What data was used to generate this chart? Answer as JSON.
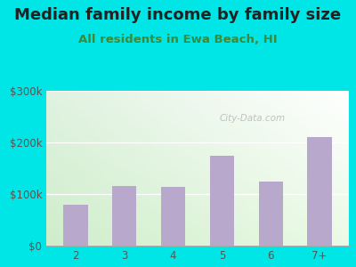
{
  "title": "Median family income by family size",
  "subtitle": "All residents in Ewa Beach, HI",
  "categories": [
    "2",
    "3",
    "4",
    "5",
    "6",
    "7+"
  ],
  "values": [
    80000,
    115000,
    113000,
    175000,
    125000,
    210000
  ],
  "bar_color": "#b8a8cc",
  "title_color": "#222222",
  "subtitle_color": "#3a8a3a",
  "background_outer": "#00e5e5",
  "background_inner_top_left": "#e8f8f0",
  "background_inner_bottom_right": "#ffffff",
  "ylim": [
    0,
    300000
  ],
  "yticks": [
    0,
    100000,
    200000,
    300000
  ],
  "ytick_labels": [
    "$0",
    "$100k",
    "$200k",
    "$300k"
  ],
  "watermark": "City-Data.com",
  "title_fontsize": 13,
  "subtitle_fontsize": 9.5,
  "tick_fontsize": 8.5,
  "tick_color": "#555555"
}
